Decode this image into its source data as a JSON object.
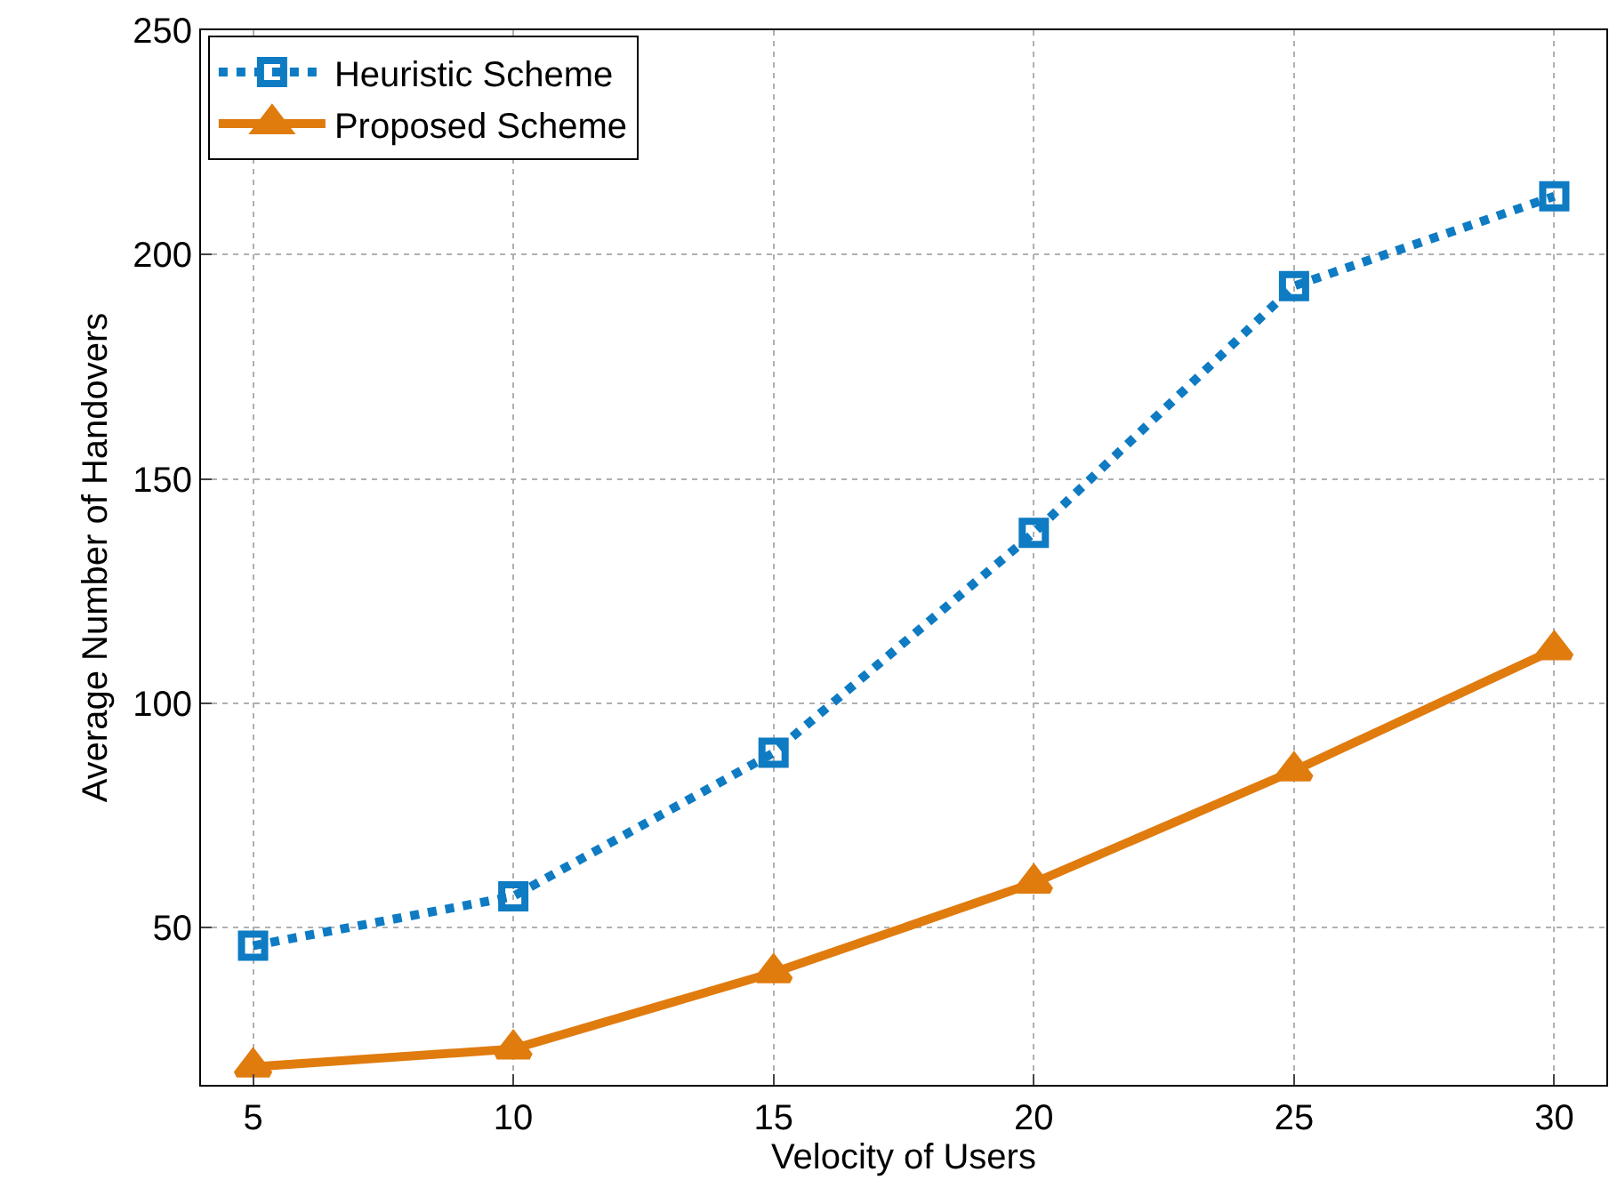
{
  "chart_data": {
    "type": "line",
    "xlabel": "Velocity of Users",
    "ylabel": "Average Number of Handovers",
    "x": [
      5,
      10,
      15,
      20,
      25,
      30
    ],
    "series": [
      {
        "name": "Heuristic Scheme",
        "color": "#0e7bc3",
        "values": [
          46,
          57,
          89,
          138,
          193,
          213
        ],
        "marker": "square",
        "line_style": "dotted"
      },
      {
        "name": "Proposed Scheme",
        "color": "#e07b0e",
        "values": [
          19,
          23,
          40,
          60,
          85,
          112
        ],
        "marker": "triangle",
        "line_style": "solid"
      }
    ],
    "xlim": [
      4,
      31
    ],
    "xticks": [
      5,
      10,
      15,
      20,
      25,
      30
    ],
    "ylim": [
      15,
      250
    ],
    "yticks": [
      50,
      100,
      150,
      200,
      250
    ],
    "grid": true,
    "legend": "top left"
  }
}
